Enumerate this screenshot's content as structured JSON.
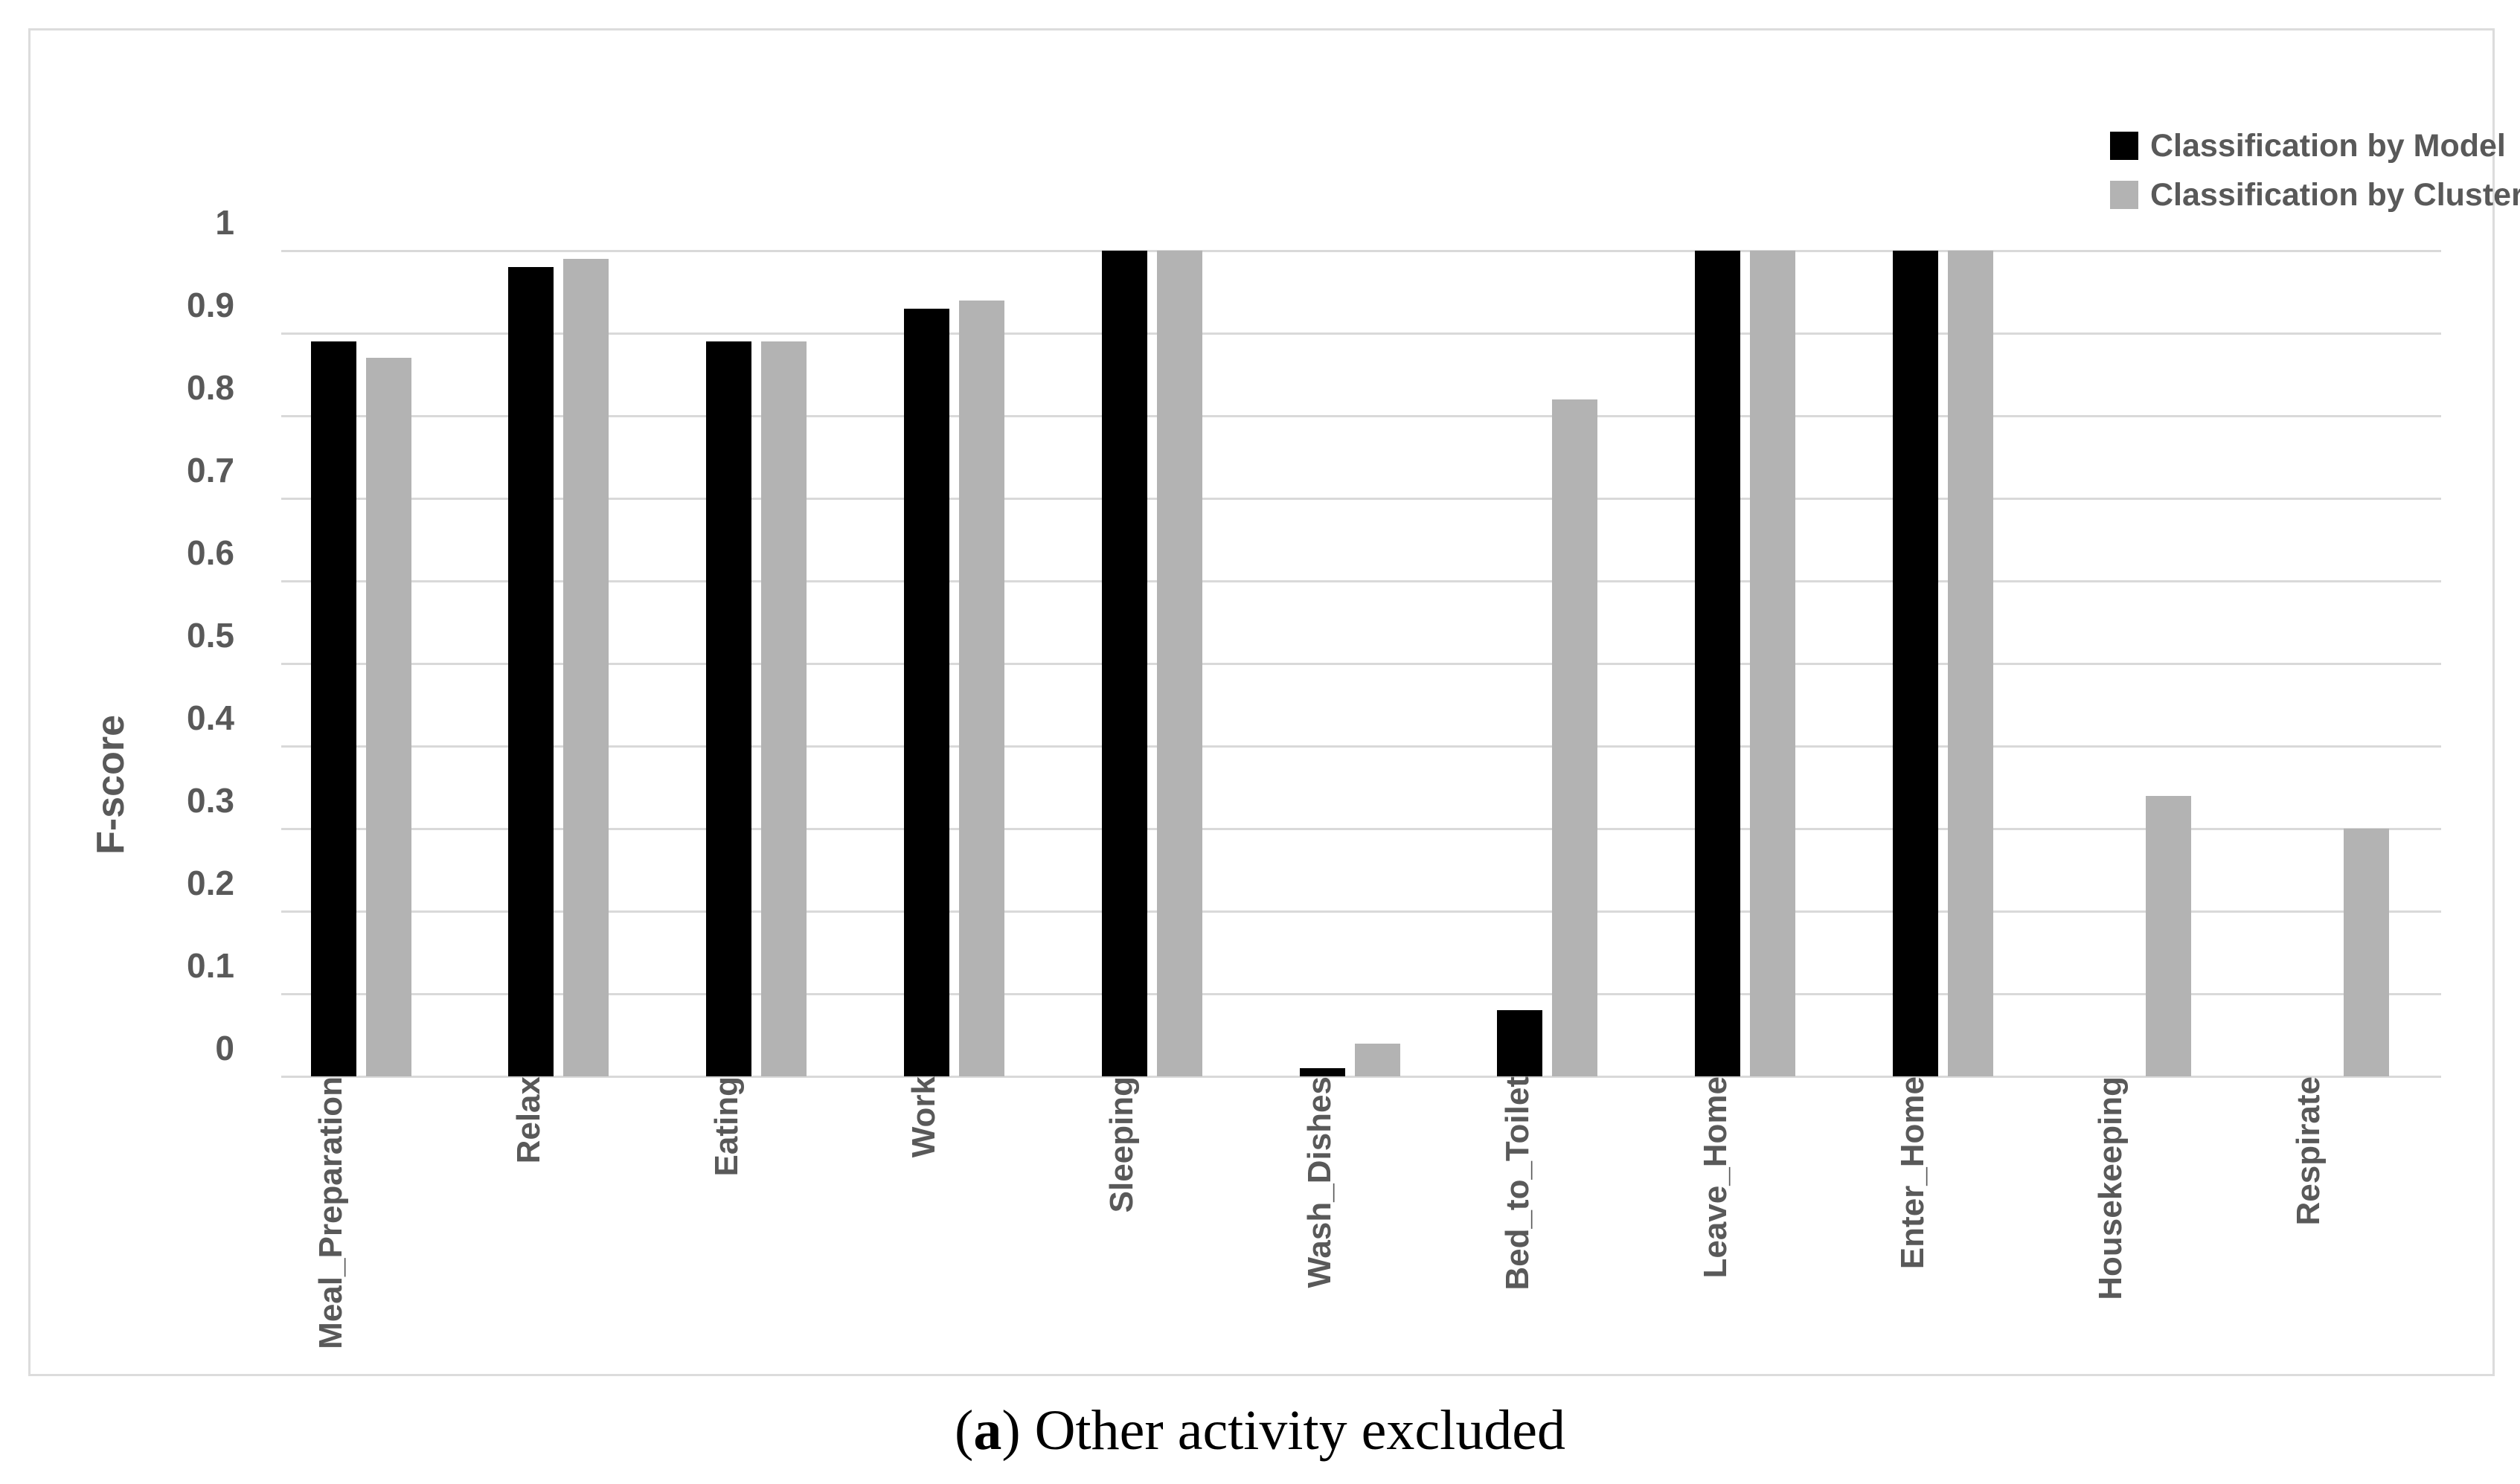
{
  "chart_data": {
    "type": "bar",
    "title": "",
    "xlabel": "",
    "ylabel": "F-score",
    "ylim": [
      0,
      1
    ],
    "yticks": [
      0,
      0.1,
      0.2,
      0.3,
      0.4,
      0.5,
      0.6,
      0.7,
      0.8,
      0.9,
      1
    ],
    "ytick_labels": [
      "0",
      "0.1",
      "0.2",
      "0.3",
      "0.4",
      "0.5",
      "0.6",
      "0.7",
      "0.8",
      "0.9",
      "1"
    ],
    "grid": "horizontal",
    "legend_position": "top-right",
    "categories": [
      "Meal_Preparation",
      "Relax",
      "Eating",
      "Work",
      "Sleeping",
      "Wash_Dishes",
      "Bed_to_Toilet",
      "Leave_Home",
      "Enter_Home",
      "Housekeeping",
      "Respirate"
    ],
    "series": [
      {
        "name": "Classification by Model",
        "color": "#000000",
        "values": [
          0.89,
          0.98,
          0.89,
          0.93,
          1.0,
          0.01,
          0.08,
          1.0,
          1.0,
          0,
          0
        ]
      },
      {
        "name": "Classification by Cluster",
        "color": "#b3b3b3",
        "values": [
          0.87,
          0.99,
          0.89,
          0.94,
          1.0,
          0.04,
          0.82,
          1.0,
          1.0,
          0.34,
          0.3
        ]
      }
    ],
    "colors": {
      "grid": "#d9d9d9",
      "axis_text": "#595959",
      "background": "#ffffff",
      "border": "#dcdcdc"
    }
  },
  "caption": {
    "open": "(",
    "marker": "a",
    "rest": ") Other activity excluded"
  }
}
